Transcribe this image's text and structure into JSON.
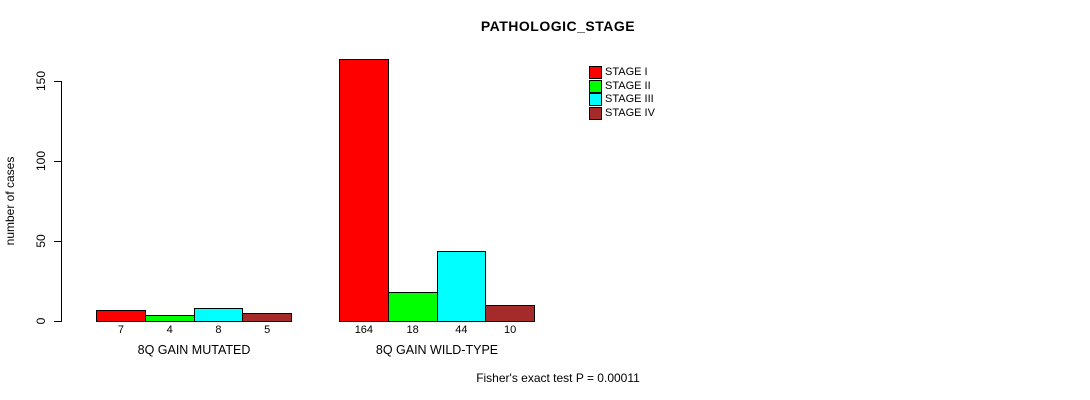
{
  "chart_data": {
    "type": "bar",
    "title": "PATHOLOGIC_STAGE",
    "xlabel": "",
    "ylabel": "number of cases",
    "yticks": [
      0,
      50,
      100,
      150
    ],
    "ylim": [
      0,
      165
    ],
    "grid": false,
    "legend_position": "top-right",
    "series": [
      "STAGE I",
      "STAGE II",
      "STAGE III",
      "STAGE IV"
    ],
    "colors": [
      "#FF0000",
      "#00FF00",
      "#00FFFF",
      "#A52A2A"
    ],
    "groups": [
      {
        "label": "8Q GAIN MUTATED",
        "values": [
          7,
          4,
          8,
          5
        ]
      },
      {
        "label": "8Q GAIN WILD-TYPE",
        "values": [
          164,
          18,
          44,
          10
        ]
      }
    ],
    "bar_value_labels": [
      [
        "7",
        "4",
        "8",
        "5"
      ],
      [
        "164",
        "18",
        "44",
        "10"
      ]
    ],
    "annotation": "Fisher's exact test P = 0.00011"
  }
}
